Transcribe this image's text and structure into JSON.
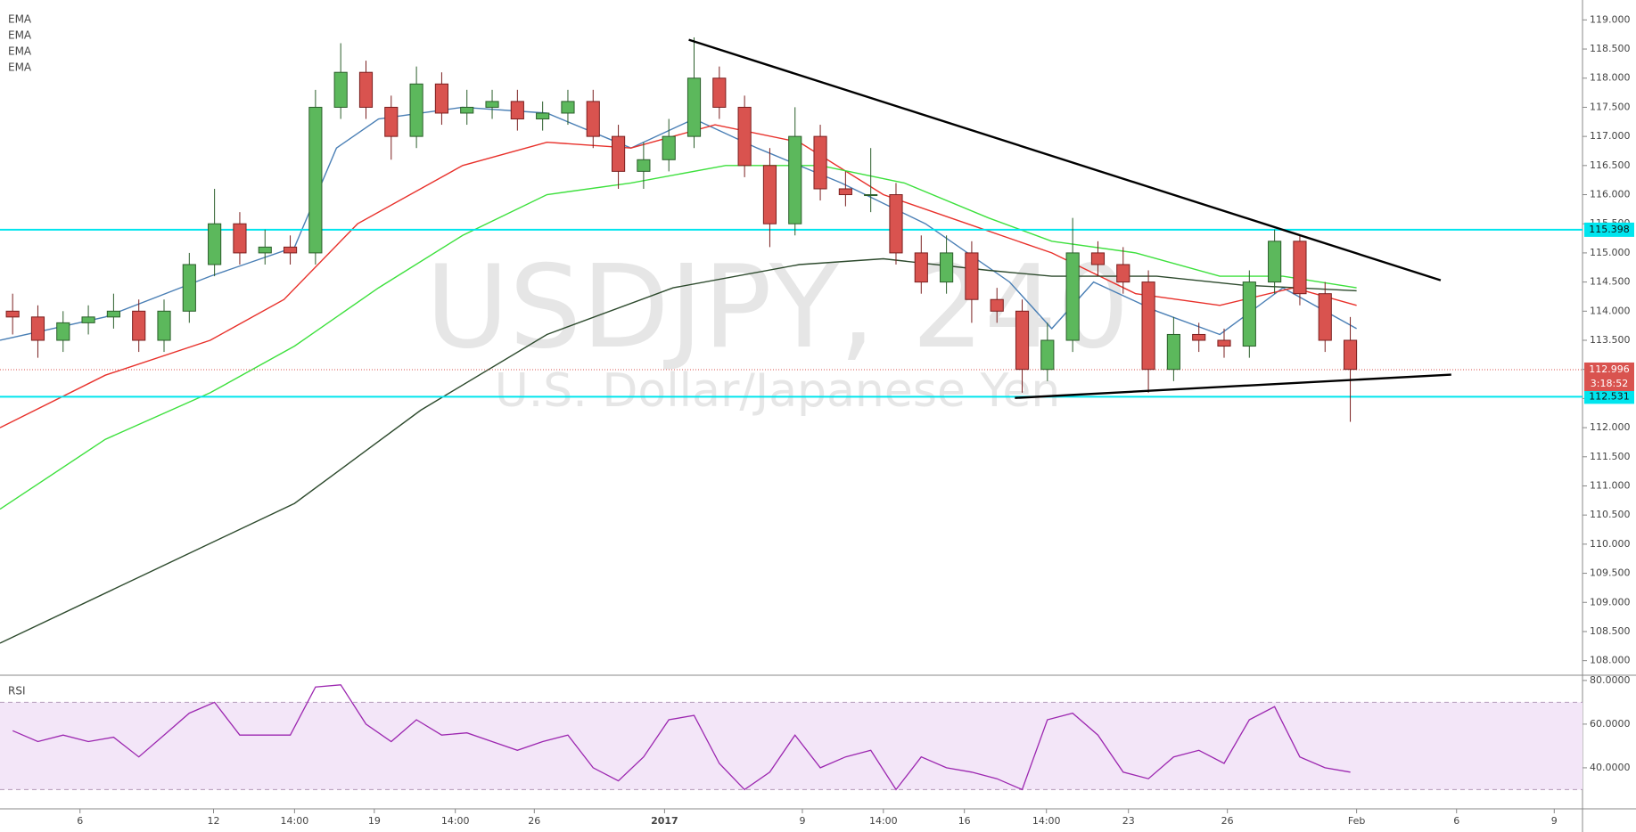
{
  "chart_data": {
    "type": "candlestick",
    "title": "USDJPY, 240",
    "subtitle": "U.S. Dollar/Japanese Yen",
    "up_color": "#5cb85c",
    "down_color": "#d9534f",
    "x": [
      0.5,
      1.5,
      2.5,
      3.5,
      4.5,
      5.5,
      6.5,
      7.5,
      8.5,
      9.5,
      10.5,
      11.5,
      12.5,
      13.5,
      14.5,
      15.5,
      16.5,
      17.5,
      18.5,
      19.5,
      20.5,
      21.5,
      22.5,
      23.5,
      24.5,
      25.5,
      26.5,
      27.5,
      28.5,
      29.5,
      30.5,
      31.5,
      32.5,
      33.5,
      34.5,
      35.5,
      36.5,
      37.5,
      38.5,
      39.5,
      40.5,
      41.5,
      42.5,
      43.5,
      44.5,
      45.5,
      46.5,
      47.5,
      48.5,
      49.5,
      50.5,
      51.5,
      52.5,
      53.5
    ],
    "open": [
      114.0,
      113.9,
      113.5,
      113.8,
      113.9,
      114.0,
      113.5,
      114.0,
      114.8,
      115.5,
      115.0,
      115.1,
      115.0,
      117.5,
      118.1,
      117.5,
      117.0,
      117.9,
      117.4,
      117.5,
      117.6,
      117.3,
      117.4,
      117.6,
      117.0,
      116.4,
      116.6,
      117.0,
      118.0,
      117.5,
      116.5,
      115.5,
      117.0,
      116.1,
      116.0,
      116.0,
      115.0,
      114.5,
      115.0,
      114.2,
      114.0,
      113.0,
      113.5,
      115.0,
      114.8,
      114.5,
      113.0,
      113.6,
      113.5,
      113.4,
      114.5,
      115.2,
      114.3,
      113.5
    ],
    "high": [
      114.3,
      114.1,
      114.0,
      114.1,
      114.3,
      114.2,
      114.2,
      115.0,
      116.1,
      115.7,
      115.4,
      115.3,
      117.8,
      118.6,
      118.3,
      117.7,
      118.2,
      118.1,
      117.8,
      117.8,
      117.8,
      117.6,
      117.8,
      117.8,
      117.2,
      116.9,
      117.3,
      118.7,
      118.2,
      117.7,
      116.8,
      117.5,
      117.2,
      116.4,
      116.8,
      116.2,
      115.3,
      115.3,
      115.2,
      114.4,
      114.2,
      113.8,
      115.6,
      115.2,
      115.1,
      114.7,
      113.9,
      113.8,
      113.7,
      114.7,
      115.4,
      115.3,
      114.5,
      113.9
    ],
    "low": [
      113.6,
      113.2,
      113.3,
      113.6,
      113.7,
      113.3,
      113.3,
      113.8,
      114.6,
      114.8,
      114.8,
      114.8,
      114.8,
      117.3,
      117.3,
      116.6,
      116.8,
      117.2,
      117.2,
      117.3,
      117.1,
      117.1,
      117.2,
      116.8,
      116.1,
      116.1,
      116.4,
      116.8,
      117.3,
      116.3,
      115.1,
      115.3,
      115.9,
      115.8,
      115.7,
      114.8,
      114.3,
      114.3,
      113.8,
      113.8,
      112.6,
      112.8,
      113.3,
      114.6,
      114.3,
      112.6,
      112.8,
      113.3,
      113.2,
      113.2,
      114.3,
      114.1,
      113.3,
      112.1
    ],
    "close": [
      113.9,
      113.5,
      113.8,
      113.9,
      114.0,
      113.5,
      114.0,
      114.8,
      115.5,
      115.0,
      115.1,
      115.0,
      117.5,
      118.1,
      117.5,
      117.0,
      117.9,
      117.4,
      117.5,
      117.6,
      117.3,
      117.4,
      117.6,
      117.0,
      116.4,
      116.6,
      117.0,
      118.0,
      117.5,
      116.5,
      115.5,
      117.0,
      116.1,
      116.0,
      116.0,
      115.0,
      114.5,
      115.0,
      114.2,
      114.0,
      113.0,
      113.5,
      115.0,
      114.8,
      114.5,
      113.0,
      113.6,
      113.5,
      113.4,
      114.5,
      115.2,
      114.3,
      113.5,
      113.0
    ],
    "xlim": [
      0,
      62.7
    ],
    "xticks": [
      {
        "value": 3.17,
        "label": "6"
      },
      {
        "value": 8.46,
        "label": "12"
      },
      {
        "value": 11.67,
        "label": "14:00"
      },
      {
        "value": 14.83,
        "label": "19"
      },
      {
        "value": 18.04,
        "label": "14:00"
      },
      {
        "value": 21.17,
        "label": "26"
      },
      {
        "value": 26.33,
        "label": "2017"
      },
      {
        "value": 31.79,
        "label": "9"
      },
      {
        "value": 35,
        "label": "14:00"
      },
      {
        "value": 38.21,
        "label": "16"
      },
      {
        "value": 41.46,
        "label": "14:00"
      },
      {
        "value": 44.71,
        "label": "23"
      },
      {
        "value": 48.63,
        "label": "26"
      },
      {
        "value": 53.75,
        "label": "Feb"
      },
      {
        "value": 57.71,
        "label": "6"
      },
      {
        "value": 61.58,
        "label": "9"
      }
    ],
    "ylim": [
      107.75,
      119.25
    ],
    "yticks": [
      {
        "value": 108,
        "label": "108.000"
      },
      {
        "value": 108.5,
        "label": "108.500"
      },
      {
        "value": 109,
        "label": "109.000"
      },
      {
        "value": 109.5,
        "label": "109.500"
      },
      {
        "value": 110,
        "label": "110.000"
      },
      {
        "value": 110.5,
        "label": "110.500"
      },
      {
        "value": 111,
        "label": "111.000"
      },
      {
        "value": 111.5,
        "label": "111.500"
      },
      {
        "value": 112,
        "label": "112.000"
      },
      {
        "value": 112.5,
        "label": "112.500"
      },
      {
        "value": 113,
        "label": "113.000"
      },
      {
        "value": 113.5,
        "label": "113.500"
      },
      {
        "value": 114,
        "label": "114.000"
      },
      {
        "value": 114.5,
        "label": "114.500"
      },
      {
        "value": 115,
        "label": "115.000"
      },
      {
        "value": 115.5,
        "label": "115.500"
      },
      {
        "value": 116,
        "label": "116.000"
      },
      {
        "value": 116.5,
        "label": "116.500"
      },
      {
        "value": 117,
        "label": "117.000"
      },
      {
        "value": 117.5,
        "label": "117.500"
      },
      {
        "value": 118,
        "label": "118.000"
      },
      {
        "value": 118.5,
        "label": "118.500"
      },
      {
        "value": 119,
        "label": "119.000"
      }
    ],
    "series": [
      {
        "name": "EMA",
        "color": "#4a7fb5",
        "x": [
          0,
          4.17,
          8.33,
          11.67,
          13.33,
          15,
          18.33,
          21.67,
          25,
          27.5,
          30,
          33.33,
          36.67,
          40,
          41.67,
          43.33,
          45.83,
          48.33,
          50.83,
          53.75
        ],
        "values": [
          113.5,
          113.9,
          114.6,
          115.1,
          116.8,
          117.3,
          117.5,
          117.4,
          116.8,
          117.3,
          116.8,
          116.2,
          115.5,
          114.5,
          113.7,
          114.5,
          114.0,
          113.6,
          114.4,
          113.7
        ]
      },
      {
        "name": "EMA",
        "color": "#e8302a",
        "x": [
          0,
          4.17,
          8.33,
          11.25,
          14.17,
          18.33,
          21.67,
          25,
          28.33,
          31.67,
          35,
          38.33,
          41.67,
          45,
          48.33,
          51.25,
          53.75
        ],
        "values": [
          112.0,
          112.9,
          113.5,
          114.2,
          115.5,
          116.5,
          116.9,
          116.8,
          117.2,
          116.9,
          116.0,
          115.5,
          115.0,
          114.3,
          114.1,
          114.4,
          114.1
        ]
      },
      {
        "name": "EMA",
        "color": "#3de03d",
        "x": [
          0,
          4.17,
          8.33,
          11.67,
          15,
          18.33,
          21.67,
          25,
          28.75,
          32.5,
          35.83,
          39.17,
          41.67,
          45,
          48.33,
          50.83,
          53.75
        ],
        "values": [
          110.6,
          111.8,
          112.6,
          113.4,
          114.4,
          115.3,
          116.0,
          116.2,
          116.5,
          116.5,
          116.2,
          115.6,
          115.2,
          115.0,
          114.6,
          114.6,
          114.4
        ]
      },
      {
        "name": "EMA",
        "color": "#2d4a2d",
        "x": [
          0,
          5.83,
          11.67,
          16.67,
          21.67,
          26.67,
          31.67,
          35,
          39.17,
          41.67,
          45.83,
          49.17,
          53.75
        ],
        "values": [
          108.3,
          109.5,
          110.7,
          112.3,
          113.6,
          114.4,
          114.8,
          114.9,
          114.7,
          114.6,
          114.6,
          114.45,
          114.35
        ]
      }
    ],
    "trendlines": [
      {
        "x": [
          27.29,
          57.08
        ],
        "y": [
          118.66,
          114.53
        ]
      },
      {
        "x": [
          40.21,
          57.5
        ],
        "y": [
          112.51,
          112.91
        ]
      }
    ],
    "hlines": [
      {
        "value": 115.398,
        "color": "#00e5ee"
      },
      {
        "value": 112.531,
        "color": "#00e5ee"
      }
    ],
    "current": {
      "value": 112.996,
      "countdown": "3:18:52",
      "color": "#d9534f"
    },
    "rsi": {
      "label": "RSI",
      "color": "#9c27b0",
      "band": [
        30,
        70
      ],
      "ylim": [
        21.2,
        82.4
      ],
      "yticks": [
        {
          "value": 80,
          "label": "80.0000"
        },
        {
          "value": 60,
          "label": "60.0000"
        },
        {
          "value": 40,
          "label": "40.0000"
        }
      ],
      "values": [
        57,
        52,
        55,
        52,
        54,
        45,
        55,
        65,
        70,
        55,
        55,
        55,
        77,
        78,
        60,
        52,
        62,
        55,
        56,
        52,
        48,
        52,
        55,
        40,
        34,
        45,
        62,
        64,
        42,
        30,
        38,
        55,
        40,
        45,
        48,
        30,
        45,
        40,
        38,
        35,
        30,
        62,
        65,
        55,
        38,
        35,
        45,
        48,
        42,
        62,
        68,
        45,
        40,
        38
      ]
    }
  }
}
